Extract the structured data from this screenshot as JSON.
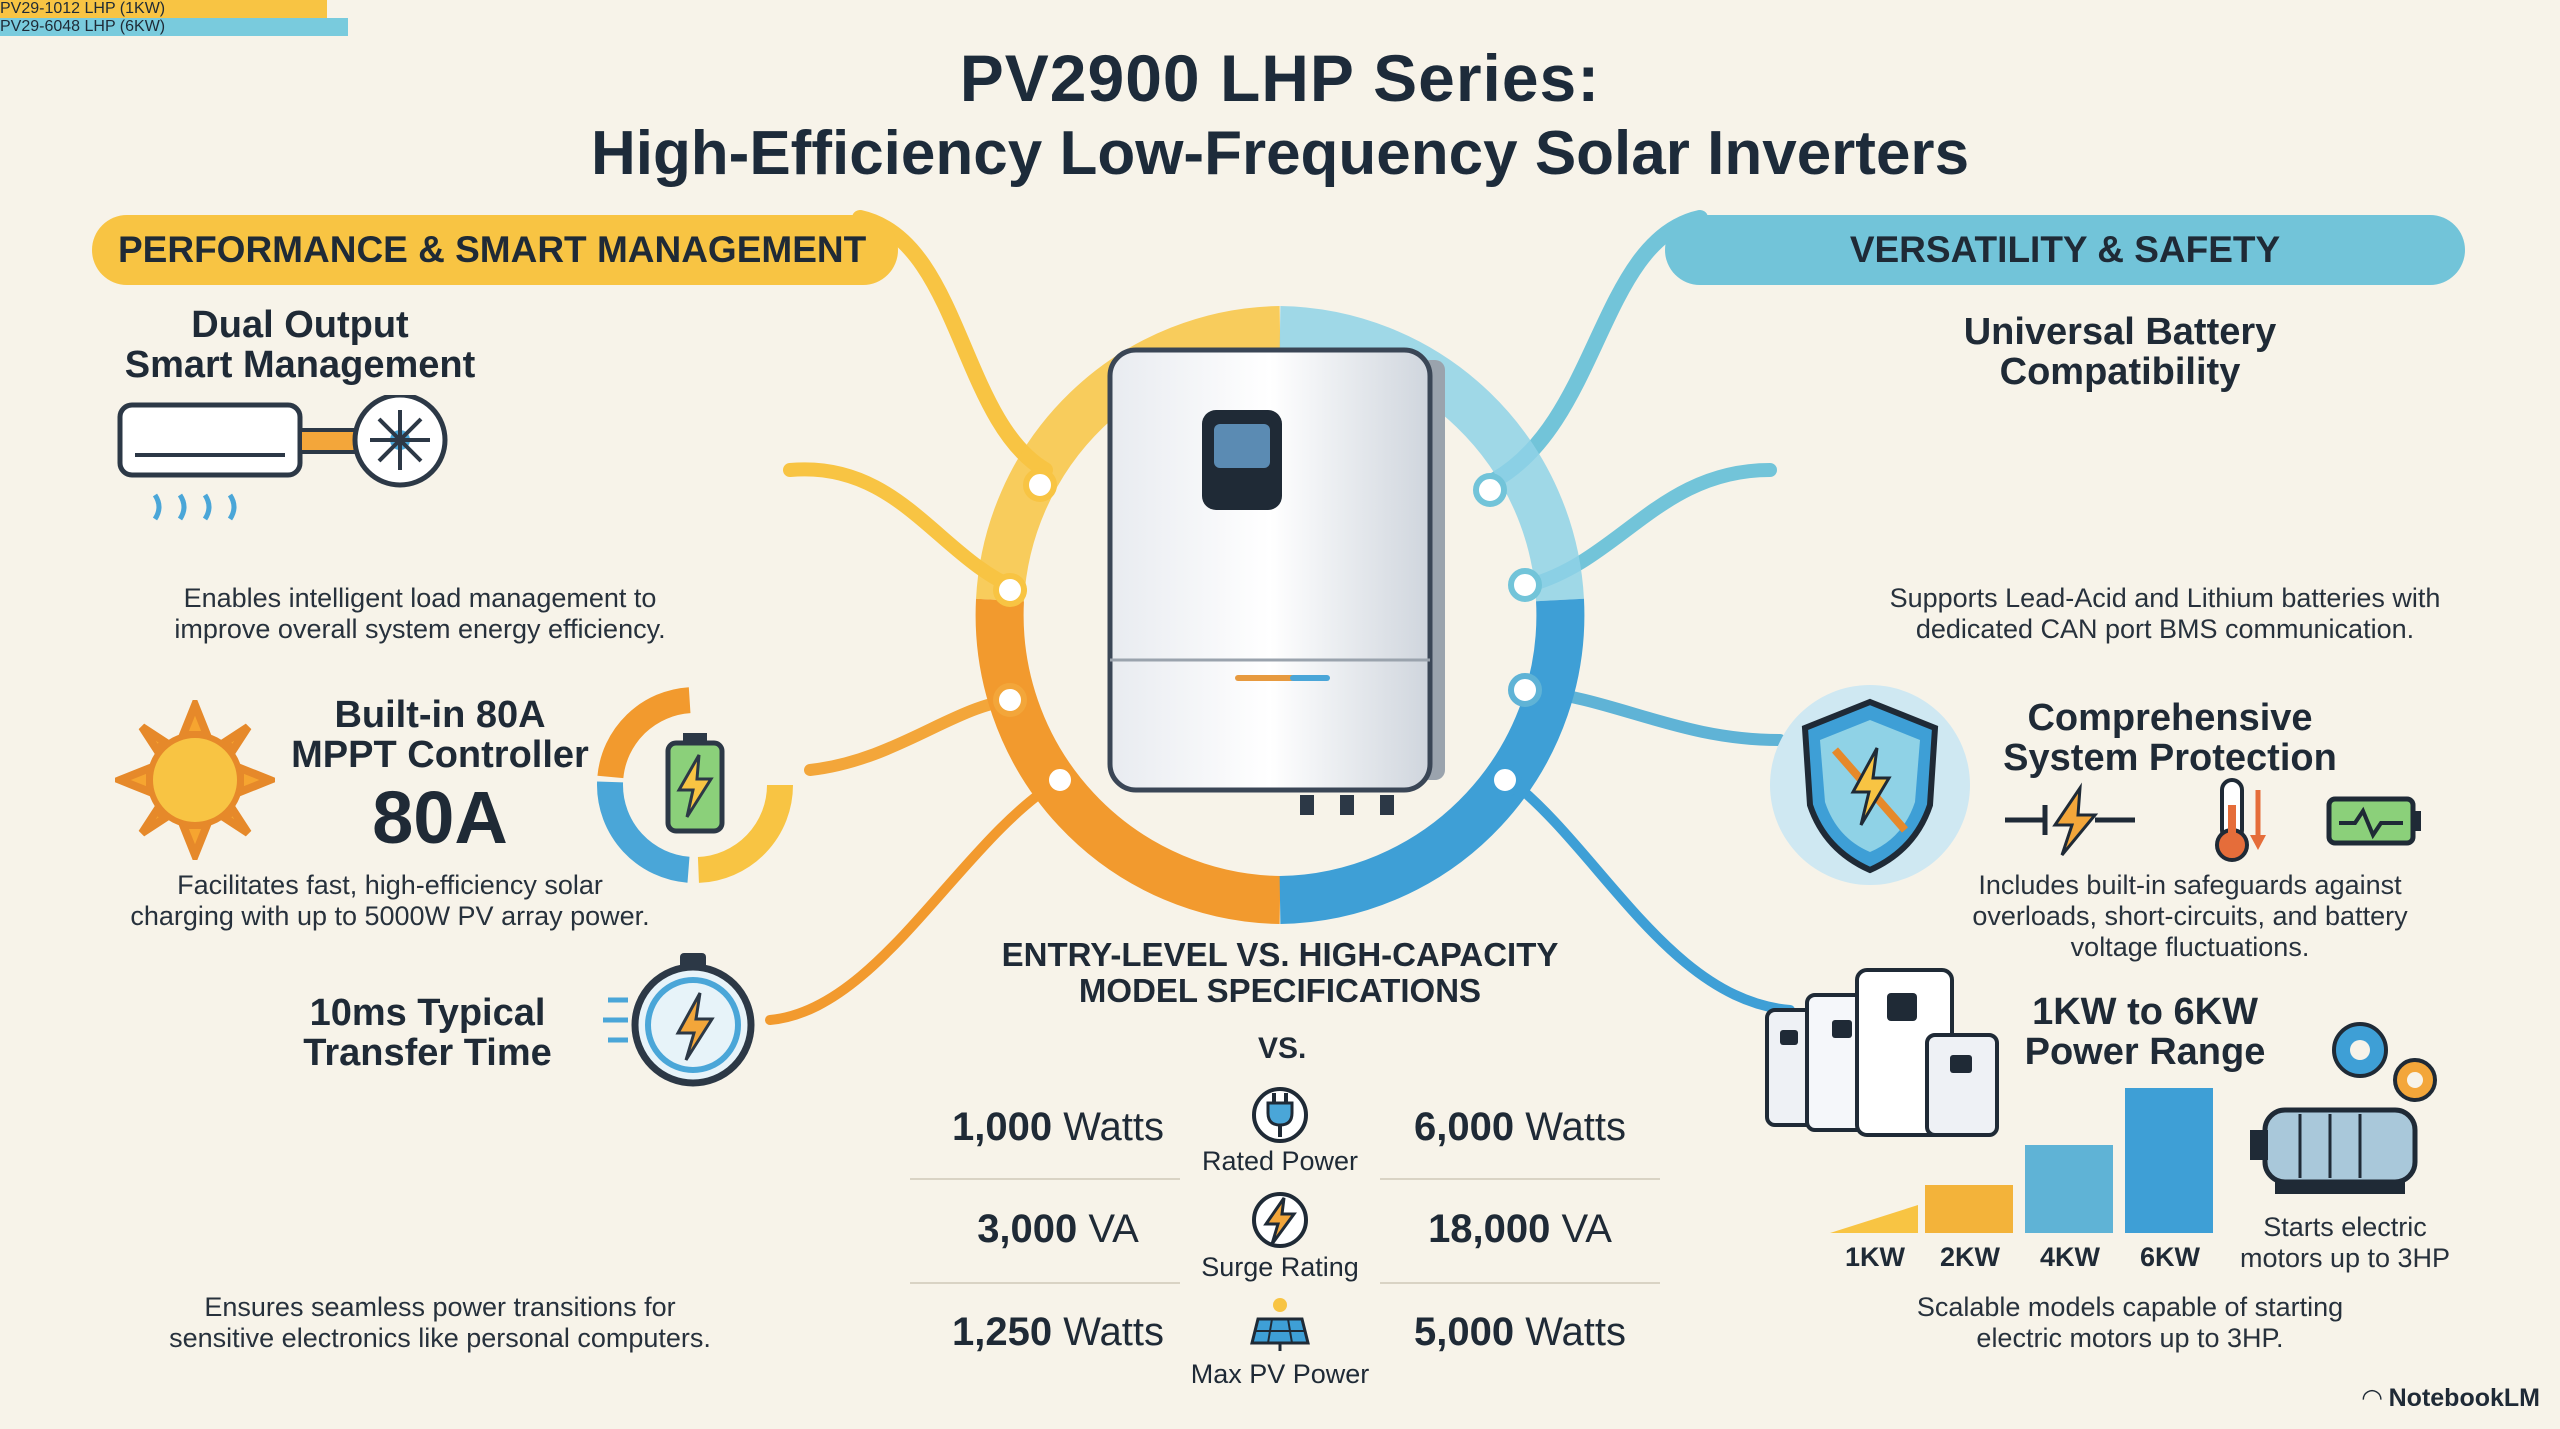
{
  "title": {
    "line1": "PV2900 LHP Series:",
    "line2": "High-Efficiency Low-Frequency Solar Inverters"
  },
  "left_banner": "PERFORMANCE & SMART MANAGEMENT",
  "right_banner": "VERSATILITY & SAFETY",
  "left": {
    "dual": {
      "heading1": "Dual Output",
      "heading2": "Smart Management",
      "desc1": "Enables intelligent load management to",
      "desc2": "improve overall system energy efficiency."
    },
    "mppt": {
      "heading1": "Built-in 80A",
      "heading2": "MPPT Controller",
      "big": "80A",
      "desc1": "Facilitates fast, high-efficiency solar",
      "desc2": "charging with up to 5000W PV array power."
    },
    "transfer": {
      "heading1": "10ms Typical",
      "heading2": "Transfer Time",
      "desc1": "Ensures seamless power transitions for",
      "desc2": "sensitive electronics like personal computers."
    }
  },
  "right": {
    "battery": {
      "heading1": "Universal Battery",
      "heading2": "Compatibility",
      "desc1": "Supports Lead-Acid and Lithium batteries with",
      "desc2": "dedicated CAN port BMS communication."
    },
    "protection": {
      "heading1": "Comprehensive",
      "heading2": "System Protection",
      "desc1": "Includes built-in safeguards against",
      "desc2": "overloads, short-circuits, and battery",
      "desc3": "voltage fluctuations."
    },
    "range": {
      "heading1": "1KW to 6KW",
      "heading2": "Power Range",
      "scale": [
        "1KW",
        "2KW",
        "4KW",
        "6KW"
      ],
      "motor1": "Starts electric",
      "motor2": "motors up to 3HP",
      "desc1": "Scalable models capable of starting",
      "desc2": "electric motors up to 3HP."
    }
  },
  "specs": {
    "heading1": "ENTRY-LEVEL VS. HIGH-CAPACITY",
    "heading2": "MODEL SPECIFICATIONS",
    "left_model": "PV29-1012 LHP (1KW)",
    "vs": "VS.",
    "right_model": "PV29-6048 LHP (6KW)",
    "rows": [
      {
        "left_num": "1,000",
        "left_unit": "Watts",
        "label": "Rated Power",
        "right_num": "6,000",
        "right_unit": "Watts"
      },
      {
        "left_num": "3,000",
        "left_unit": "VA",
        "label": "Surge Rating",
        "right_num": "18,000",
        "right_unit": "VA"
      },
      {
        "left_num": "1,250",
        "left_unit": "Watts",
        "label": "Max PV Power",
        "right_num": "5,000",
        "right_unit": "Watts"
      }
    ]
  },
  "colors": {
    "orange": "#f29a2e",
    "yellow": "#f8c443",
    "blue": "#3e9fd6",
    "teal": "#72c4d9",
    "dark": "#1d2b3a"
  },
  "footer": "NotebookLM"
}
